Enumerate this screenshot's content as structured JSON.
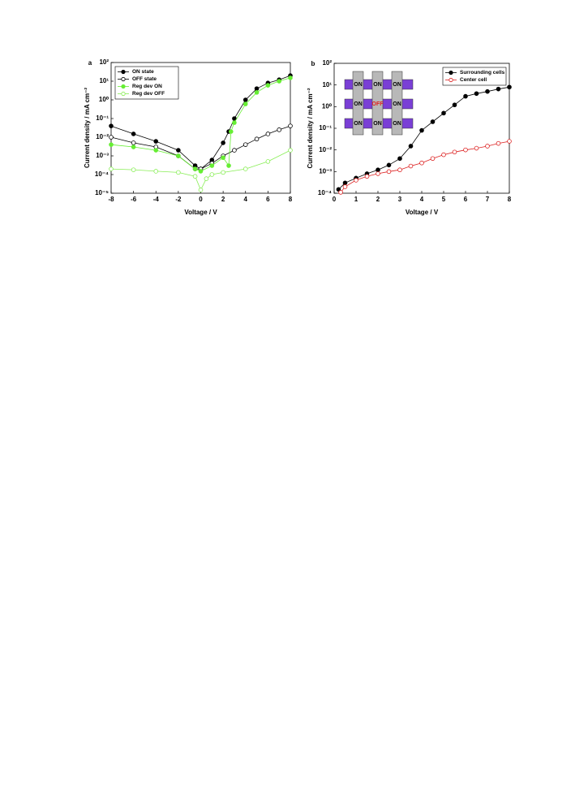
{
  "chart_data": [
    {
      "type": "line",
      "panel": "a",
      "log_y": true,
      "legend": "upper-left",
      "xlabel": "Voltage / V",
      "ylabel": "Current density / mA cm⁻²",
      "xlim": [
        -8,
        8
      ],
      "xticks": [
        -8,
        -6,
        -4,
        -2,
        0,
        2,
        4,
        6,
        8
      ],
      "ylim": [
        1e-05,
        100
      ],
      "yticks": [
        {
          "value": 1e-05,
          "label": "10⁻⁵"
        },
        {
          "value": 0.0001,
          "label": "10⁻⁴"
        },
        {
          "value": 0.001,
          "label": "10⁻³"
        },
        {
          "value": 0.01,
          "label": "10⁻²"
        },
        {
          "value": 0.1,
          "label": "10⁻¹"
        },
        {
          "value": 1,
          "label": "10⁰"
        },
        {
          "value": 10,
          "label": "10¹"
        },
        {
          "value": 100,
          "label": "10²"
        }
      ],
      "series": [
        {
          "name": "ON state",
          "color": "#000000",
          "marker": "filled",
          "x": [
            -8,
            -6,
            -4,
            -2,
            -0.5,
            0,
            1,
            2,
            2.5,
            3,
            4,
            5,
            6,
            7,
            8
          ],
          "values": [
            0.04,
            0.015,
            0.006,
            0.002,
            0.0003,
            0.0002,
            0.0006,
            0.005,
            0.02,
            0.1,
            1,
            4,
            8,
            12,
            20
          ]
        },
        {
          "name": "OFF state",
          "color": "#000000",
          "marker": "open",
          "x": [
            -8,
            -6,
            -4,
            -2,
            -0.5,
            0,
            1,
            2,
            3,
            4,
            5,
            6,
            7,
            8
          ],
          "values": [
            0.01,
            0.005,
            0.003,
            0.001,
            0.0002,
            0.0002,
            0.0004,
            0.001,
            0.002,
            0.004,
            0.008,
            0.015,
            0.025,
            0.04
          ]
        },
        {
          "name": "Reg dev ON",
          "color": "#66ee33",
          "marker": "filled",
          "x": [
            -8,
            -6,
            -4,
            -2,
            -0.5,
            0,
            1,
            2,
            2.5,
            2.7,
            3,
            4,
            5,
            6,
            7,
            8
          ],
          "values": [
            0.004,
            0.003,
            0.002,
            0.001,
            0.0002,
            0.00015,
            0.0003,
            0.0008,
            0.0003,
            0.02,
            0.06,
            0.6,
            2.5,
            6,
            10,
            15
          ]
        },
        {
          "name": "Reg dev OFF",
          "color": "#88ee55",
          "marker": "open",
          "x": [
            -8,
            -6,
            -4,
            -2,
            -0.5,
            0,
            0.5,
            1,
            2,
            4,
            6,
            8
          ],
          "values": [
            0.0002,
            0.00018,
            0.00015,
            0.00013,
            8e-05,
            1.5e-05,
            6e-05,
            0.0001,
            0.00013,
            0.0002,
            0.0005,
            0.002
          ]
        }
      ]
    },
    {
      "type": "line",
      "panel": "b",
      "log_y": true,
      "legend": "upper-right",
      "xlabel": "Voltage / V",
      "ylabel": "Current density / mA cm⁻²",
      "xlim": [
        0,
        8
      ],
      "xticks": [
        0,
        1,
        2,
        3,
        4,
        5,
        6,
        7,
        8
      ],
      "ylim": [
        0.0001,
        100
      ],
      "yticks": [
        {
          "value": 0.0001,
          "label": "10⁻⁴"
        },
        {
          "value": 0.001,
          "label": "10⁻³"
        },
        {
          "value": 0.01,
          "label": "10⁻²"
        },
        {
          "value": 0.1,
          "label": "10⁻¹"
        },
        {
          "value": 1,
          "label": "10⁰"
        },
        {
          "value": 10,
          "label": "10¹"
        },
        {
          "value": 100,
          "label": "10²"
        }
      ],
      "inset_labels": [
        "ON",
        "ON",
        "ON",
        "ON",
        "OFF",
        "ON",
        "ON",
        "ON",
        "ON"
      ],
      "series": [
        {
          "name": "Surrounding cells",
          "color": "#000000",
          "marker": "filled",
          "x": [
            0.2,
            0.5,
            1,
            1.5,
            2,
            2.5,
            3,
            3.5,
            4,
            4.5,
            5,
            5.5,
            6,
            6.5,
            7,
            7.5,
            8
          ],
          "values": [
            0.00015,
            0.0003,
            0.0005,
            0.0008,
            0.0012,
            0.002,
            0.004,
            0.015,
            0.08,
            0.2,
            0.5,
            1.2,
            3,
            4,
            5,
            6.5,
            8
          ]
        },
        {
          "name": "Center cell",
          "color": "#dd2222",
          "marker": "open",
          "x": [
            0.3,
            0.5,
            1,
            1.5,
            2,
            2.5,
            3,
            3.5,
            4,
            4.5,
            5,
            5.5,
            6,
            6.5,
            7,
            7.5,
            8
          ],
          "values": [
            0.00011,
            0.0002,
            0.0004,
            0.0006,
            0.0008,
            0.001,
            0.0012,
            0.0018,
            0.0025,
            0.004,
            0.006,
            0.008,
            0.01,
            0.012,
            0.015,
            0.02,
            0.025
          ]
        }
      ]
    }
  ]
}
